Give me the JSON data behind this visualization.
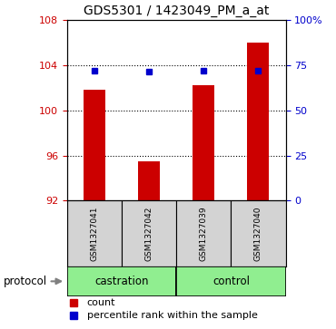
{
  "title": "GDS5301 / 1423049_PM_a_at",
  "samples": [
    "GSM1327041",
    "GSM1327042",
    "GSM1327039",
    "GSM1327040"
  ],
  "bar_values": [
    101.8,
    95.5,
    102.2,
    106.0
  ],
  "bar_base": 92,
  "blue_values": [
    103.5,
    103.4,
    103.5,
    103.5
  ],
  "ylim_left": [
    92,
    108
  ],
  "yticks_left": [
    92,
    96,
    100,
    104,
    108
  ],
  "ylim_right": [
    0,
    100
  ],
  "yticks_right": [
    0,
    25,
    50,
    75,
    100
  ],
  "ytick_right_labels": [
    "0",
    "25",
    "50",
    "75",
    "100%"
  ],
  "bar_color": "#cc0000",
  "blue_color": "#0000cc",
  "left_axis_color": "#cc0000",
  "right_axis_color": "#0000cc",
  "protocol_groups": [
    {
      "label": "castration",
      "indices": [
        0,
        1
      ],
      "color": "#90ee90"
    },
    {
      "label": "control",
      "indices": [
        2,
        3
      ],
      "color": "#90ee90"
    }
  ],
  "legend_items": [
    {
      "label": "count",
      "color": "#cc0000"
    },
    {
      "label": "percentile rank within the sample",
      "color": "#0000cc"
    }
  ],
  "grid_yticks": [
    96,
    100,
    104
  ],
  "bg_color": "#ffffff",
  "plot_bg_color": "#ffffff",
  "sample_box_color": "#d3d3d3",
  "bar_width": 0.4
}
